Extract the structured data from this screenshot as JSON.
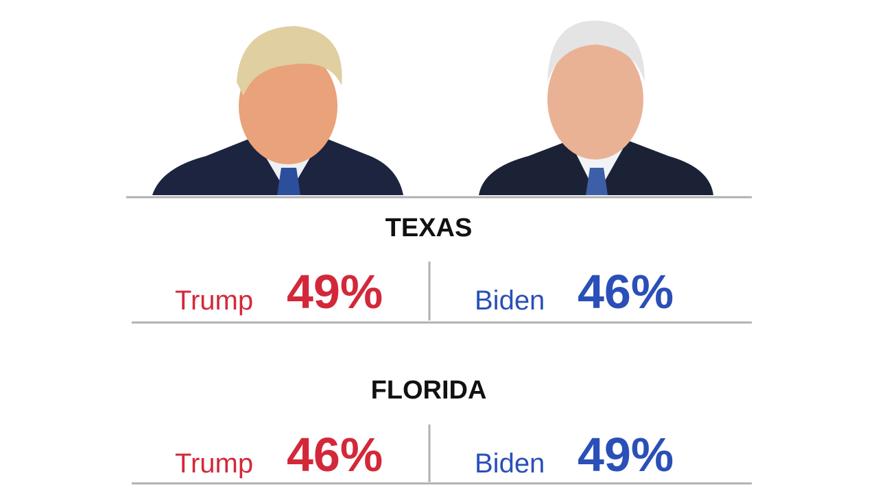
{
  "states": [
    {
      "name": "TEXAS",
      "results": [
        {
          "name": "Trump",
          "value": "49%"
        },
        {
          "name": "Biden",
          "value": "46%"
        }
      ]
    },
    {
      "name": "FLORIDA",
      "results": [
        {
          "name": "Trump",
          "value": "46%"
        },
        {
          "name": "Biden",
          "value": "49%"
        }
      ]
    }
  ]
}
